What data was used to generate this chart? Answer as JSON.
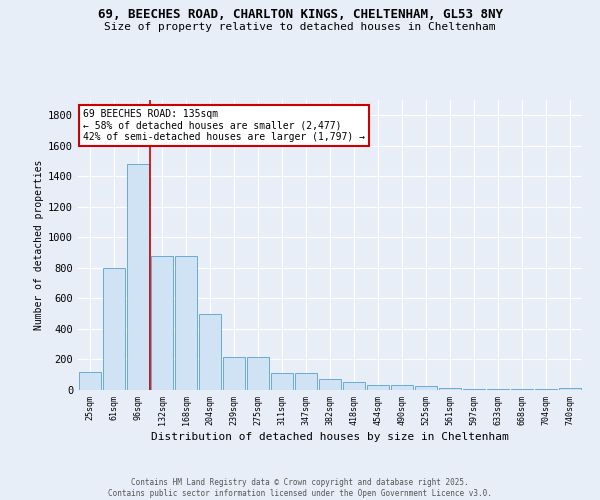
{
  "title_line1": "69, BEECHES ROAD, CHARLTON KINGS, CHELTENHAM, GL53 8NY",
  "title_line2": "Size of property relative to detached houses in Cheltenham",
  "xlabel": "Distribution of detached houses by size in Cheltenham",
  "ylabel": "Number of detached properties",
  "bar_color": "#cfe3f5",
  "bar_edge_color": "#6aaad4",
  "background_color": "#e8eef8",
  "grid_color": "#ffffff",
  "categories": [
    "25sqm",
    "61sqm",
    "96sqm",
    "132sqm",
    "168sqm",
    "204sqm",
    "239sqm",
    "275sqm",
    "311sqm",
    "347sqm",
    "382sqm",
    "418sqm",
    "454sqm",
    "490sqm",
    "525sqm",
    "561sqm",
    "597sqm",
    "633sqm",
    "668sqm",
    "704sqm",
    "740sqm"
  ],
  "values": [
    120,
    800,
    1480,
    880,
    880,
    500,
    215,
    215,
    110,
    110,
    70,
    50,
    35,
    30,
    25,
    10,
    5,
    5,
    5,
    5,
    10
  ],
  "ylim": [
    0,
    1900
  ],
  "yticks": [
    0,
    200,
    400,
    600,
    800,
    1000,
    1200,
    1400,
    1600,
    1800
  ],
  "red_line_x": 2.52,
  "annotation_text": "69 BEECHES ROAD: 135sqm\n← 58% of detached houses are smaller (2,477)\n42% of semi-detached houses are larger (1,797) →",
  "footer_line1": "Contains HM Land Registry data © Crown copyright and database right 2025.",
  "footer_line2": "Contains public sector information licensed under the Open Government Licence v3.0."
}
